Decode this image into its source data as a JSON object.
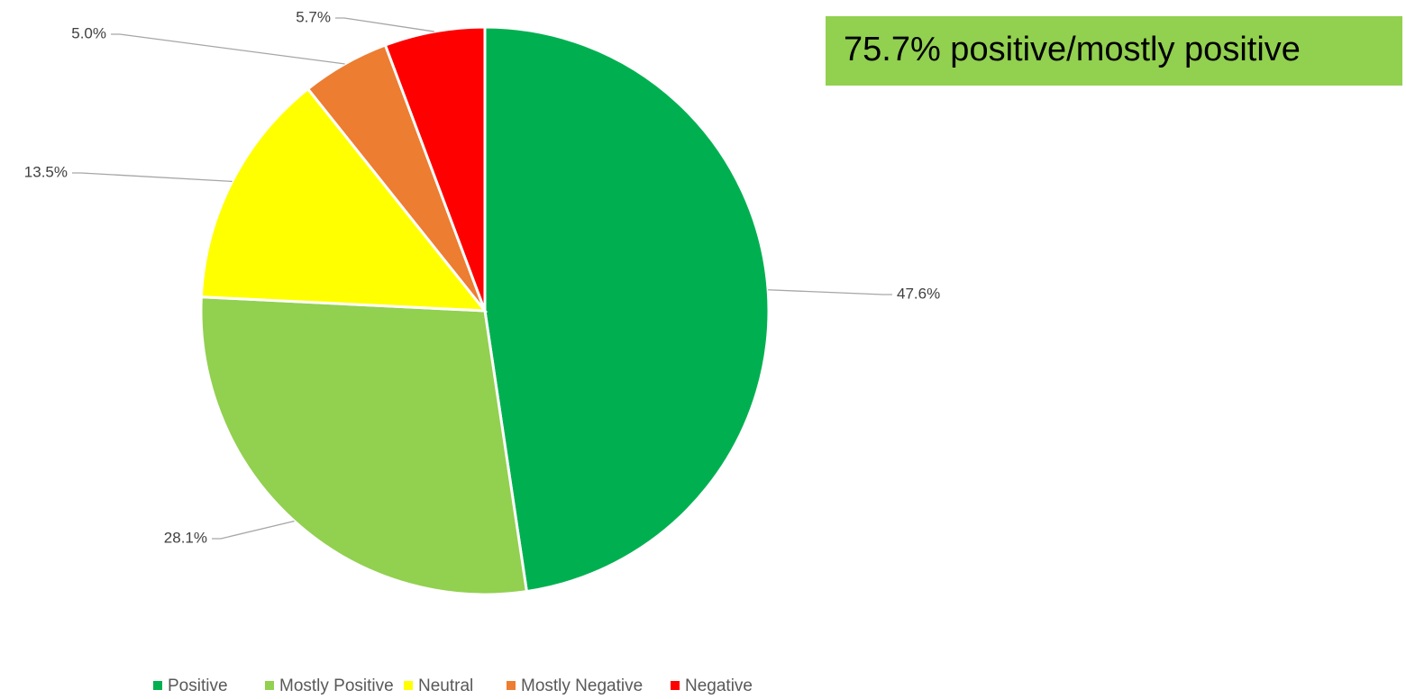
{
  "chart_data": {
    "type": "pie",
    "annotation": "75.7% positive/mostly positive",
    "categories": [
      "Positive",
      "Mostly Positive",
      "Neutral",
      "Mostly Negative",
      "Negative"
    ],
    "values": [
      47.6,
      28.1,
      13.5,
      5.0,
      5.7
    ],
    "value_labels": [
      "47.6%",
      "28.1%",
      "13.5%",
      "5.0%",
      "5.7%"
    ],
    "colors": [
      "#00b050",
      "#92d050",
      "#ffff00",
      "#ed7d31",
      "#ff0000"
    ],
    "legend": "bottom"
  }
}
